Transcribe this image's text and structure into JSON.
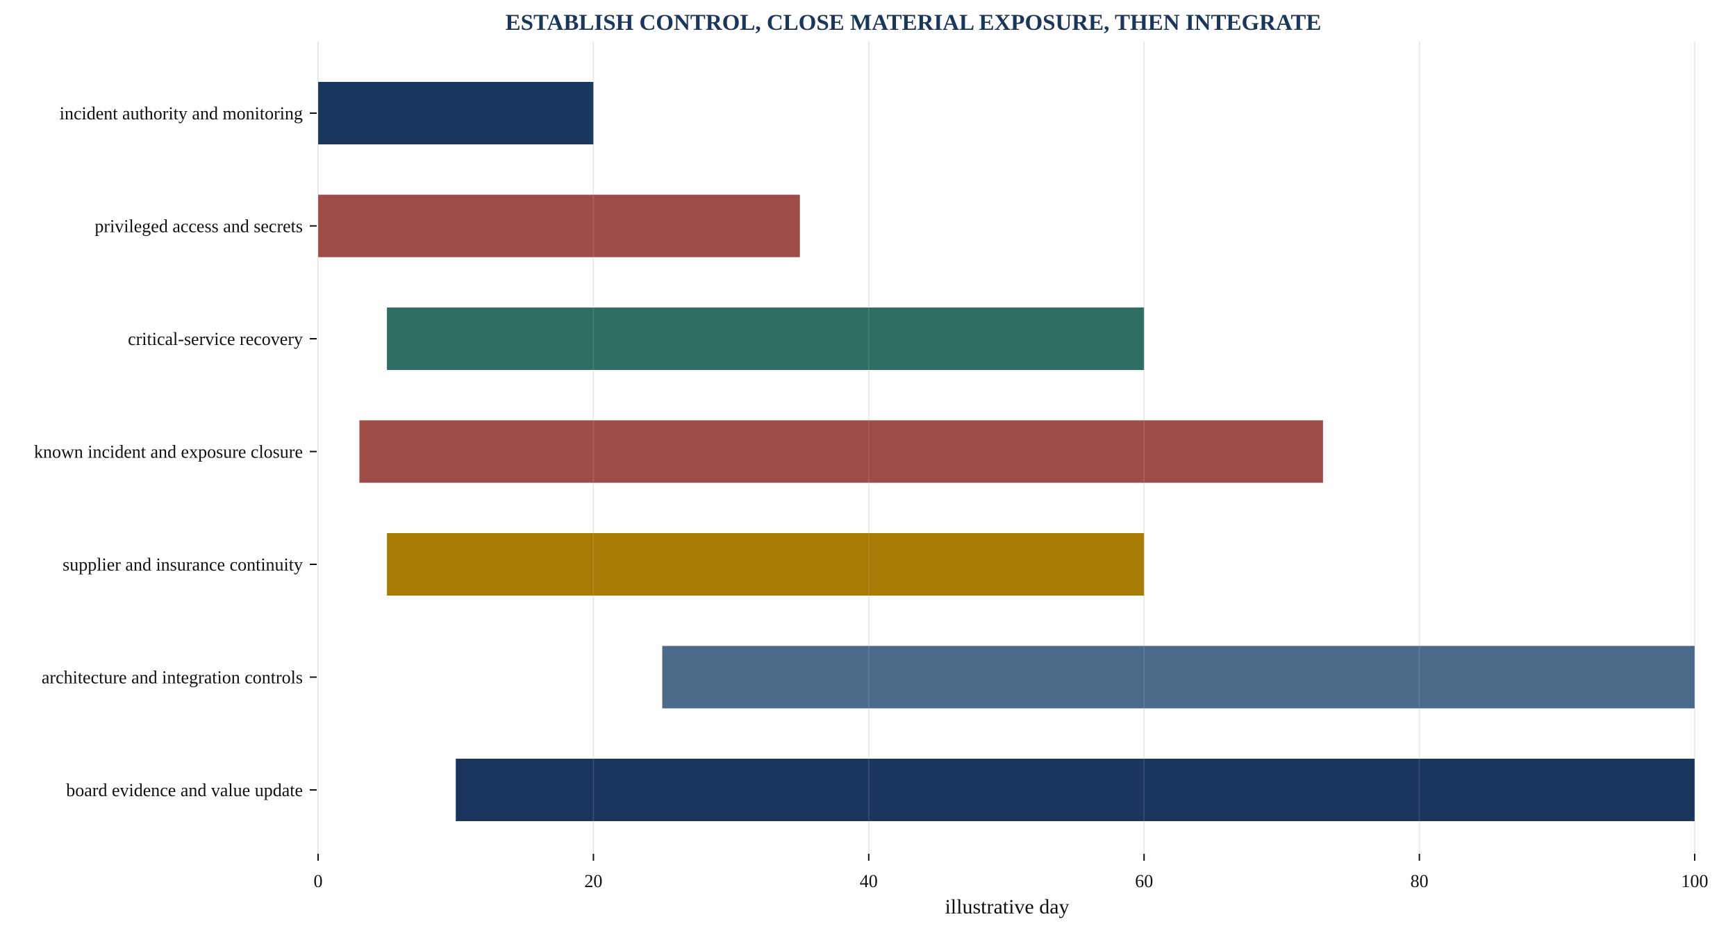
{
  "chart_data": {
    "type": "bar",
    "orientation": "horizontal",
    "title": "ESTABLISH CONTROL, CLOSE MATERIAL EXPOSURE, THEN INTEGRATE",
    "xlabel": "illustrative day",
    "ylabel": "",
    "xlim": [
      0,
      100
    ],
    "x_ticks": [
      "0",
      "20",
      "40",
      "60",
      "80",
      "100"
    ],
    "grid": "vertical",
    "categories": [
      "incident authority and monitoring",
      "privileged access and secrets",
      "critical-service recovery",
      "known incident and exposure closure",
      "supplier and insurance continuity",
      "architecture and integration controls",
      "board evidence and value update"
    ],
    "bars": [
      {
        "label": "incident authority and monitoring",
        "start": 0,
        "end": 20,
        "color": "#1b365d"
      },
      {
        "label": "privileged access and secrets",
        "start": 0,
        "end": 35,
        "color": "#9e4c48"
      },
      {
        "label": "critical-service recovery",
        "start": 5,
        "end": 60,
        "color": "#2f6e63"
      },
      {
        "label": "known incident and exposure closure",
        "start": 3,
        "end": 73,
        "color": "#9e4c48"
      },
      {
        "label": "supplier and insurance continuity",
        "start": 5,
        "end": 60,
        "color": "#a87b04"
      },
      {
        "label": "architecture and integration controls",
        "start": 25,
        "end": 100,
        "color": "#4a6a8a"
      },
      {
        "label": "board evidence and value update",
        "start": 10,
        "end": 100,
        "color": "#1b365d"
      }
    ],
    "colors": {
      "title": "#1b365d",
      "grid": "#e3e3e3",
      "text": "#111111"
    }
  }
}
